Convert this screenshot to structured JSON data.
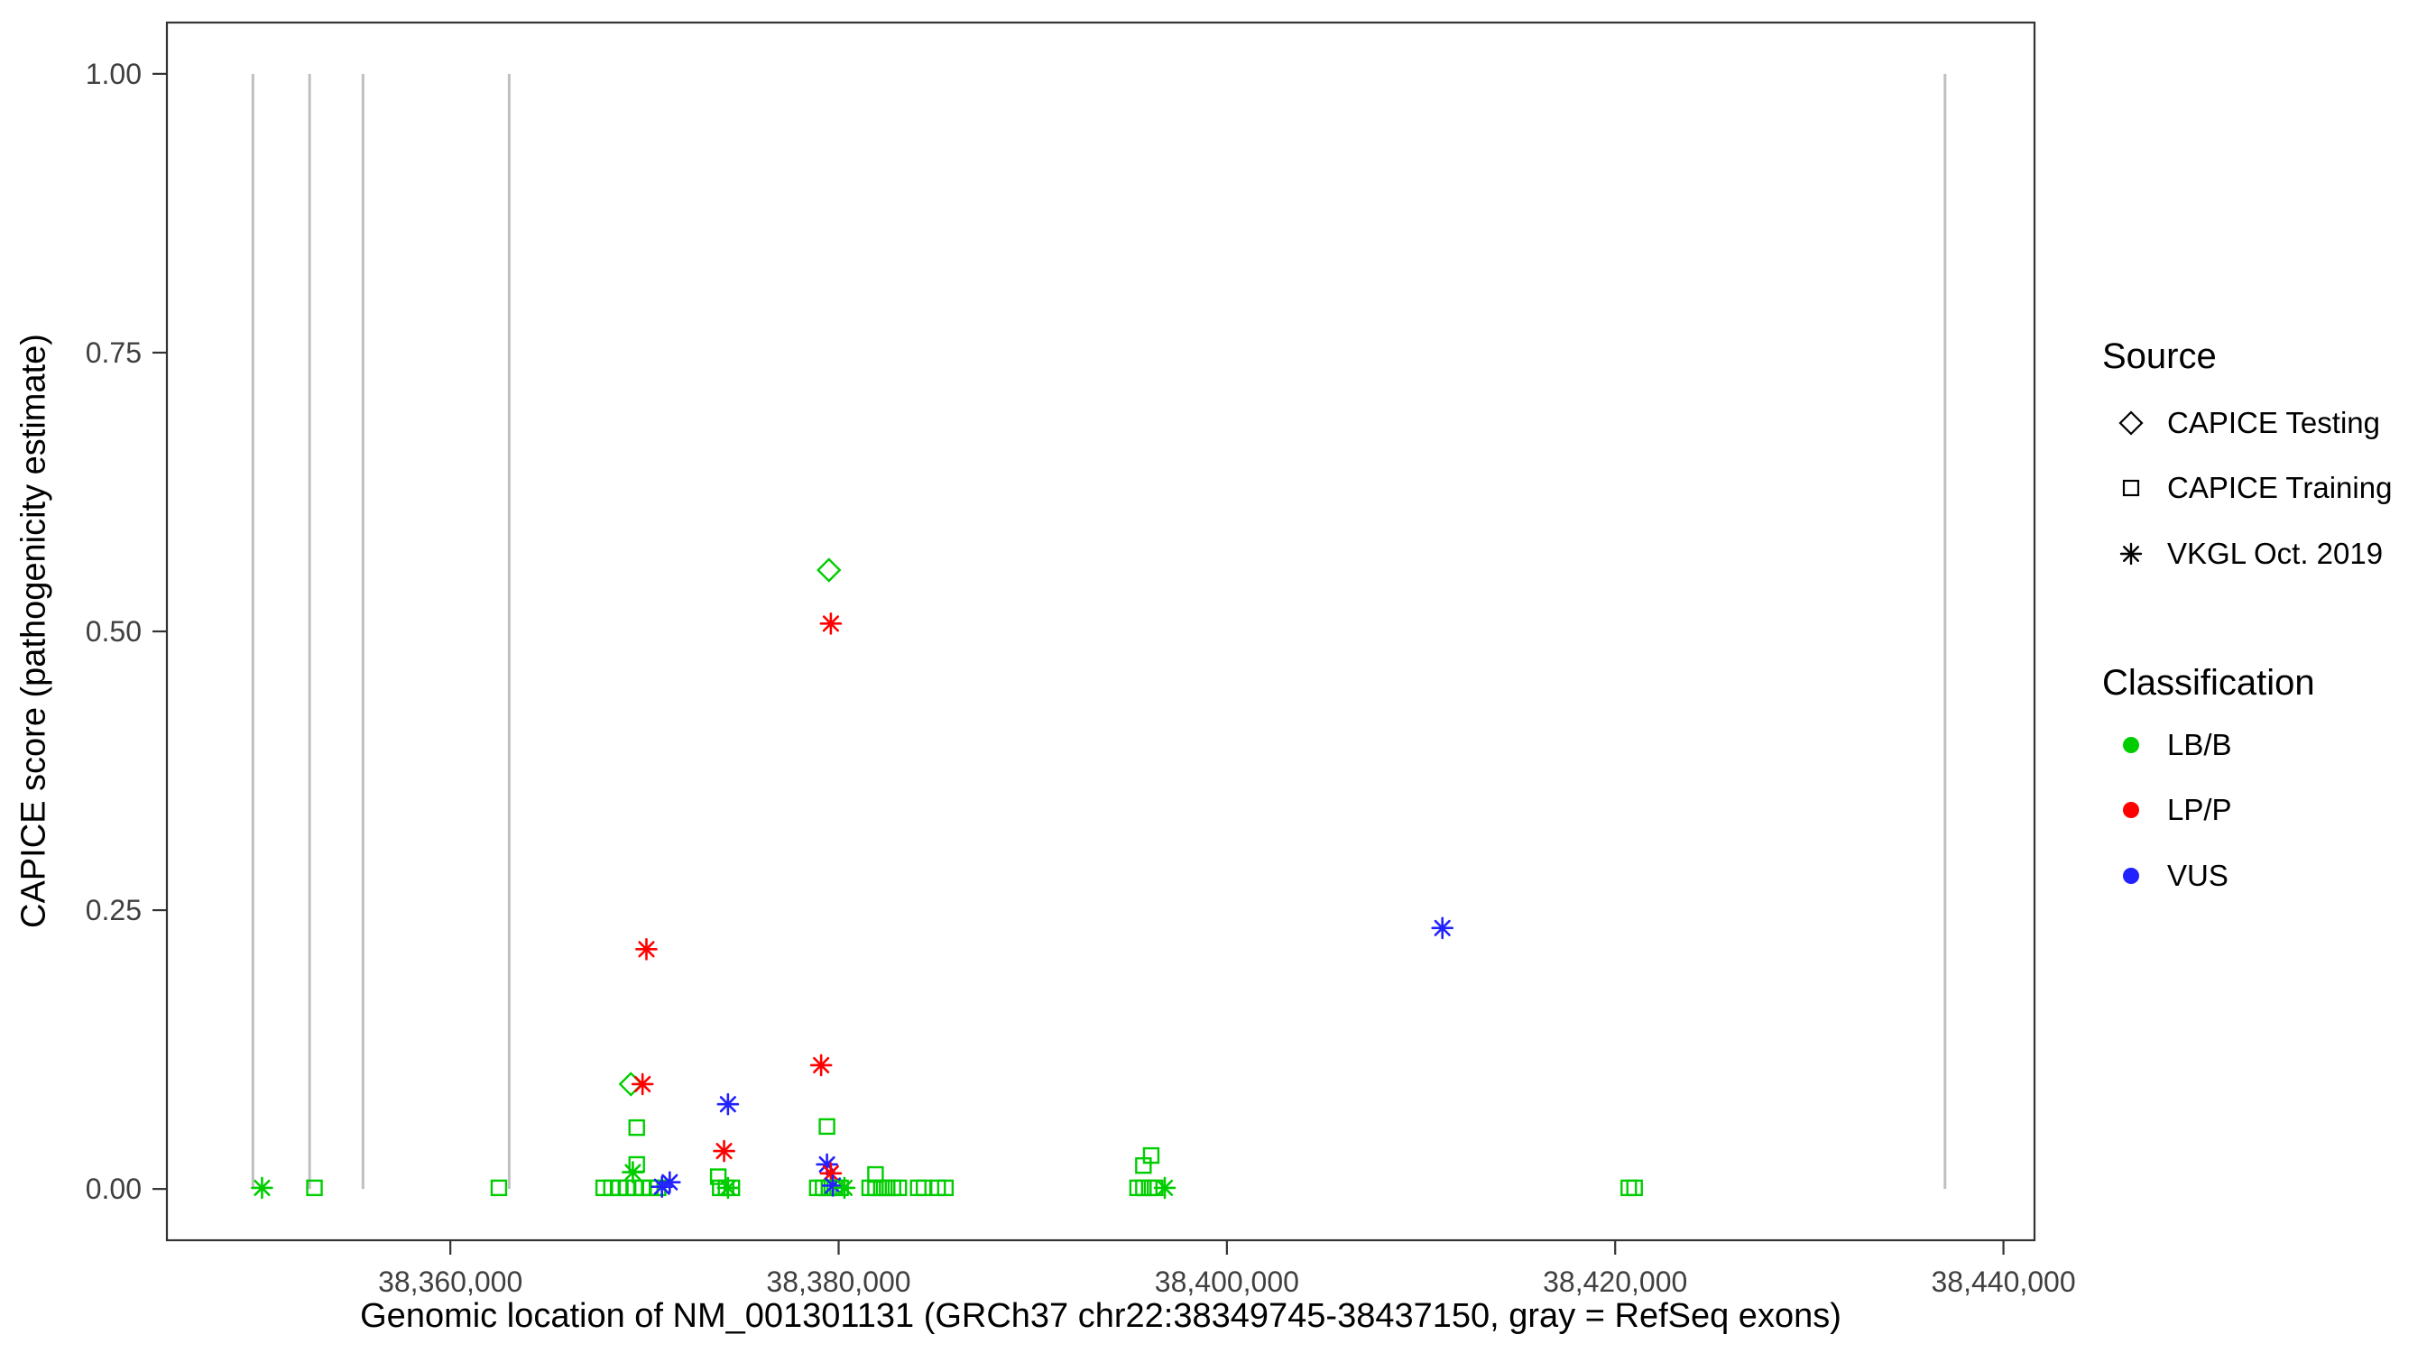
{
  "figure": {
    "background": "#ffffff",
    "panel_border_color": "#333333",
    "tick_color": "#333333",
    "tick_label_color": "#404040",
    "axis_title_color": "#000000"
  },
  "chart_data": {
    "type": "scatter",
    "title": "",
    "xlabel": "Genomic location of NM_001301131 (GRCh37 chr22:38349745-38437150, gray = RefSeq exons)",
    "ylabel": "CAPICE score (pathogenicity estimate)",
    "xlim": [
      38345400,
      38441600
    ],
    "ylim": [
      -0.046,
      1.046
    ],
    "grid": false,
    "legend_position": "right",
    "x_ticks": [
      {
        "value": 38360000,
        "label": "38,360,000"
      },
      {
        "value": 38380000,
        "label": "38,380,000"
      },
      {
        "value": 38400000,
        "label": "38,400,000"
      },
      {
        "value": 38420000,
        "label": "38,420,000"
      },
      {
        "value": 38440000,
        "label": "38,440,000"
      }
    ],
    "y_ticks": [
      {
        "value": 0.0,
        "label": "0.00"
      },
      {
        "value": 0.25,
        "label": "0.25"
      },
      {
        "value": 0.5,
        "label": "0.50"
      },
      {
        "value": 0.75,
        "label": "0.75"
      },
      {
        "value": 1.0,
        "label": "1.00"
      }
    ],
    "exons": {
      "note": "gray = RefSeq exons",
      "color": "#bfbfbf",
      "y_span": [
        0,
        1
      ],
      "x_positions": [
        38349830,
        38352750,
        38355500,
        38363030,
        38436990
      ]
    },
    "classification_colors": {
      "LB/B": "#00cd00",
      "LP/P": "#ff0000",
      "VUS": "#2222ff"
    },
    "shape_by_source": {
      "CAPICE Testing": "diamond",
      "CAPICE Training": "square",
      "VKGL Oct. 2019": "asterisk"
    },
    "legend": {
      "source": {
        "title": "Source",
        "items": [
          {
            "label": "CAPICE Testing",
            "shape": "diamond"
          },
          {
            "label": "CAPICE Training",
            "shape": "square"
          },
          {
            "label": "VKGL Oct. 2019",
            "shape": "asterisk"
          }
        ]
      },
      "classification": {
        "title": "Classification",
        "items": [
          {
            "label": "LB/B",
            "color": "#00cd00"
          },
          {
            "label": "LP/P",
            "color": "#ff0000"
          },
          {
            "label": "VUS",
            "color": "#2222ff"
          }
        ]
      }
    },
    "points_format": [
      "x",
      "y",
      "shape",
      "classification"
    ],
    "points": [
      [
        38350300,
        0.001,
        "asterisk",
        "LB/B"
      ],
      [
        38353000,
        0.001,
        "square",
        "LB/B"
      ],
      [
        38362500,
        0.001,
        "square",
        "LB/B"
      ],
      [
        38367900,
        0.001,
        "square",
        "LB/B"
      ],
      [
        38368300,
        0.001,
        "square",
        "LB/B"
      ],
      [
        38368700,
        0.001,
        "square",
        "LB/B"
      ],
      [
        38369100,
        0.001,
        "square",
        "LB/B"
      ],
      [
        38369500,
        0.001,
        "square",
        "LB/B"
      ],
      [
        38369900,
        0.001,
        "square",
        "LB/B"
      ],
      [
        38370300,
        0.001,
        "square",
        "LB/B"
      ],
      [
        38370700,
        0.001,
        "square",
        "LB/B"
      ],
      [
        38369400,
        0.015,
        "asterisk",
        "LB/B"
      ],
      [
        38369600,
        0.022,
        "square",
        "LB/B"
      ],
      [
        38369600,
        0.055,
        "square",
        "LB/B"
      ],
      [
        38369300,
        0.094,
        "diamond",
        "LB/B"
      ],
      [
        38369900,
        0.094,
        "asterisk",
        "LP/P"
      ],
      [
        38370100,
        0.215,
        "asterisk",
        "LP/P"
      ],
      [
        38370900,
        0.002,
        "asterisk",
        "VUS"
      ],
      [
        38371300,
        0.006,
        "asterisk",
        "VUS"
      ],
      [
        38373800,
        0.011,
        "square",
        "LB/B"
      ],
      [
        38373900,
        0.001,
        "square",
        "LB/B"
      ],
      [
        38374200,
        0.001,
        "square",
        "LB/B"
      ],
      [
        38374500,
        0.001,
        "square",
        "LB/B"
      ],
      [
        38374300,
        0.001,
        "asterisk",
        "LB/B"
      ],
      [
        38374100,
        0.034,
        "asterisk",
        "LP/P"
      ],
      [
        38374300,
        0.076,
        "asterisk",
        "VUS"
      ],
      [
        38379500,
        0.555,
        "diamond",
        "LB/B"
      ],
      [
        38379600,
        0.507,
        "asterisk",
        "LP/P"
      ],
      [
        38379100,
        0.111,
        "asterisk",
        "LP/P"
      ],
      [
        38379400,
        0.056,
        "square",
        "LB/B"
      ],
      [
        38379400,
        0.022,
        "asterisk",
        "VUS"
      ],
      [
        38379600,
        0.014,
        "asterisk",
        "LP/P"
      ],
      [
        38378900,
        0.001,
        "square",
        "LB/B"
      ],
      [
        38379200,
        0.001,
        "square",
        "LB/B"
      ],
      [
        38379500,
        0.001,
        "square",
        "LB/B"
      ],
      [
        38379800,
        0.001,
        "square",
        "LB/B"
      ],
      [
        38380100,
        0.001,
        "square",
        "LB/B"
      ],
      [
        38379700,
        0.003,
        "asterisk",
        "VUS"
      ],
      [
        38380300,
        0.001,
        "asterisk",
        "LB/B"
      ],
      [
        38381900,
        0.013,
        "square",
        "LB/B"
      ],
      [
        38381600,
        0.001,
        "square",
        "LB/B"
      ],
      [
        38381900,
        0.001,
        "square",
        "LB/B"
      ],
      [
        38382200,
        0.001,
        "square",
        "LB/B"
      ],
      [
        38382500,
        0.001,
        "square",
        "LB/B"
      ],
      [
        38382800,
        0.001,
        "square",
        "LB/B"
      ],
      [
        38383100,
        0.001,
        "square",
        "LB/B"
      ],
      [
        38384100,
        0.001,
        "square",
        "LB/B"
      ],
      [
        38384400,
        0.001,
        "square",
        "LB/B"
      ],
      [
        38385100,
        0.001,
        "square",
        "LB/B"
      ],
      [
        38385500,
        0.001,
        "square",
        "LB/B"
      ],
      [
        38395700,
        0.021,
        "square",
        "LB/B"
      ],
      [
        38396100,
        0.03,
        "square",
        "LB/B"
      ],
      [
        38395400,
        0.001,
        "square",
        "LB/B"
      ],
      [
        38395700,
        0.001,
        "square",
        "LB/B"
      ],
      [
        38396000,
        0.001,
        "square",
        "LB/B"
      ],
      [
        38396300,
        0.001,
        "square",
        "LB/B"
      ],
      [
        38396800,
        0.001,
        "asterisk",
        "LB/B"
      ],
      [
        38411100,
        0.234,
        "asterisk",
        "VUS"
      ],
      [
        38420700,
        0.001,
        "square",
        "LB/B"
      ],
      [
        38421000,
        0.001,
        "square",
        "LB/B"
      ]
    ]
  }
}
